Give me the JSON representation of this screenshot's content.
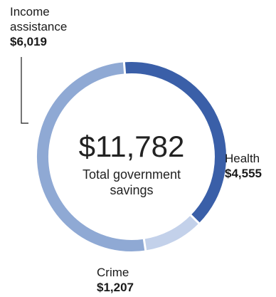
{
  "chart_data": {
    "type": "pie",
    "title": "",
    "total": {
      "value": "$11,782",
      "label": "Total government savings"
    },
    "slices": [
      {
        "label": "Income assistance",
        "value": 6019,
        "value_label": "$6,019",
        "color": "#8fa9d4"
      },
      {
        "label": "Health",
        "value": 4555,
        "value_label": "$4,555",
        "color": "#3a5fa8"
      },
      {
        "label": "Crime",
        "value": 1207,
        "value_label": "$1,207",
        "color": "#c3d1ea"
      }
    ]
  }
}
